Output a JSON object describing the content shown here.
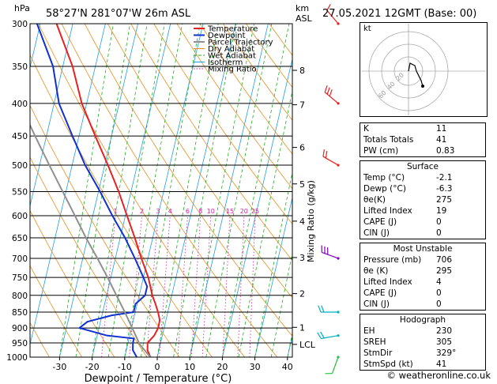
{
  "header": {
    "hpa_label": "hPa",
    "location": "58°27'N  281°07'W  26m  ASL",
    "km_label": "km",
    "asl_label": "ASL",
    "datetime": "27.05.2021  12GMT  (Base: 00)"
  },
  "colors": {
    "temperature": "#e82020",
    "dewpoint": "#1030d0",
    "parcel": "#909090",
    "dry_adiabat": "#e89020",
    "wet_adiabat": "#20b020",
    "isotherm": "#20a0e0",
    "mixing_ratio": "#d020a0",
    "wind_violet": "#8000c0",
    "wind_red": "#e82020",
    "wind_cyan": "#00b0c0",
    "wind_green": "#20c040"
  },
  "legend": [
    "Temperature",
    "Dewpoint",
    "Parcel Trajectory",
    "Dry Adiabat",
    "Wet Adiabat",
    "Isotherm",
    "Mixing Ratio"
  ],
  "chart_data": {
    "type": "line",
    "title": "58°27'N  281°07'W  26m  ASL",
    "xlabel": "Dewpoint / Temperature (°C)",
    "ylabel": "hPa",
    "y2label": "Mixing Ratio (g/kg)",
    "x_ticks": [
      -30,
      -20,
      -10,
      0,
      10,
      20,
      30,
      40
    ],
    "pressure_levels": [
      300,
      350,
      400,
      450,
      500,
      550,
      600,
      650,
      700,
      750,
      800,
      850,
      900,
      950,
      1000
    ],
    "km_ticks": [
      {
        "km": "8",
        "p": 355
      },
      {
        "km": "7",
        "p": 402
      },
      {
        "km": "6",
        "p": 469
      },
      {
        "km": "5",
        "p": 535
      },
      {
        "km": "4",
        "p": 612
      },
      {
        "km": "3",
        "p": 698
      },
      {
        "km": "2",
        "p": 795
      },
      {
        "km": "1",
        "p": 898
      },
      {
        "km": "LCL",
        "p": 955
      }
    ],
    "mixing_ratio_labels": [
      "1",
      "2",
      "3",
      "4",
      "6",
      "8",
      "10",
      "15",
      "20",
      "25"
    ],
    "mixing_ratio_values": [
      1,
      2,
      3,
      4,
      6,
      8,
      10,
      15,
      20,
      25
    ],
    "series": [
      {
        "name": "Temperature",
        "p": [
          1000,
          975,
          950,
          925,
          900,
          875,
          850,
          825,
          800,
          775,
          750,
          700,
          650,
          600,
          550,
          500,
          450,
          400,
          350,
          300
        ],
        "t": [
          -2.1,
          -3.5,
          -4,
          -2.5,
          -1.8,
          -1.9,
          -3,
          -4.4,
          -6,
          -7.2,
          -8.5,
          -12,
          -15.5,
          -19.5,
          -23.8,
          -29,
          -35,
          -41.5,
          -47,
          -55
        ]
      },
      {
        "name": "Dewpoint",
        "p": [
          1000,
          975,
          950,
          935,
          925,
          900,
          880,
          860,
          850,
          825,
          800,
          775,
          750,
          700,
          650,
          600,
          550,
          500,
          450,
          400,
          350,
          300
        ],
        "t": [
          -6.3,
          -8,
          -8.5,
          -8.5,
          -17,
          -26,
          -24,
          -17,
          -10.5,
          -10.5,
          -8.2,
          -8.2,
          -10,
          -14,
          -18.5,
          -24,
          -29.5,
          -36,
          -42,
          -48.5,
          -53,
          -61
        ]
      },
      {
        "name": "Parcel Trajectory",
        "p": [
          1000,
          955,
          900,
          850,
          800,
          750,
          700,
          650,
          600,
          550,
          500,
          450,
          400,
          350,
          300
        ],
        "t": [
          -2.1,
          -6.3,
          -9.8,
          -13.2,
          -17,
          -21,
          -25.5,
          -30.5,
          -35.5,
          -41,
          -47,
          -53.5,
          -60.5,
          -68,
          -76
        ]
      }
    ],
    "winds": [
      {
        "p": 1000,
        "dir": 200,
        "spd": 10,
        "color": "wind_green"
      },
      {
        "p": 925,
        "dir": 260,
        "spd": 15,
        "color": "wind_cyan"
      },
      {
        "p": 850,
        "dir": 270,
        "spd": 20,
        "color": "wind_cyan"
      },
      {
        "p": 700,
        "dir": 290,
        "spd": 30,
        "color": "wind_violet"
      },
      {
        "p": 500,
        "dir": 300,
        "spd": 20,
        "color": "wind_red"
      },
      {
        "p": 400,
        "dir": 310,
        "spd": 25,
        "color": "wind_red"
      },
      {
        "p": 300,
        "dir": 320,
        "spd": 10,
        "color": "wind_red"
      }
    ]
  },
  "hodograph": {
    "unit_label": "kt",
    "ring_labels": [
      "20",
      "40",
      "60"
    ]
  },
  "indices": [
    {
      "label": "K",
      "value": "11"
    },
    {
      "label": "Totals Totals",
      "value": "41"
    },
    {
      "label": "PW (cm)",
      "value": "0.83"
    }
  ],
  "surface": {
    "title": "Surface",
    "rows": [
      {
        "label": "Temp (°C)",
        "value": "-2.1"
      },
      {
        "label": "Dewp (°C)",
        "value": "-6.3"
      },
      {
        "label": "θe(K)",
        "value": "275"
      },
      {
        "label": "Lifted Index",
        "value": "19"
      },
      {
        "label": "CAPE (J)",
        "value": "0"
      },
      {
        "label": "CIN (J)",
        "value": "0"
      }
    ]
  },
  "most_unstable": {
    "title": "Most Unstable",
    "rows": [
      {
        "label": "Pressure (mb)",
        "value": "706"
      },
      {
        "label": "θe (K)",
        "value": "295"
      },
      {
        "label": "Lifted Index",
        "value": "4"
      },
      {
        "label": "CAPE (J)",
        "value": "0"
      },
      {
        "label": "CIN (J)",
        "value": "0"
      }
    ]
  },
  "hodograph_box": {
    "title": "Hodograph",
    "rows": [
      {
        "label": "EH",
        "value": "230"
      },
      {
        "label": "SREH",
        "value": "305"
      },
      {
        "label": "StmDir",
        "value": "329°"
      },
      {
        "label": "StmSpd (kt)",
        "value": "41"
      }
    ]
  },
  "credit": "© weatheronline.co.uk"
}
